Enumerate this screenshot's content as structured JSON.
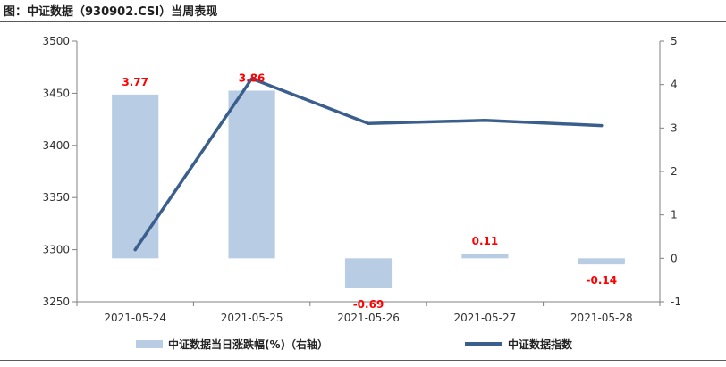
{
  "figure_title": "图：中证数据（930902.CSI）当周表现",
  "colors": {
    "bar": "#b8cce4",
    "line": "#3a5f8c",
    "label": "#ff0000",
    "axis": "#808080"
  },
  "chart_data": {
    "type": "bar+line",
    "categories": [
      "2021-05-24",
      "2021-05-25",
      "2021-05-26",
      "2021-05-27",
      "2021-05-28"
    ],
    "series": [
      {
        "name": "中证数据当日涨跌幅(%)（右轴）",
        "type": "bar",
        "axis": "right",
        "values": [
          3.77,
          3.86,
          -0.69,
          0.11,
          -0.14
        ],
        "data_labels": [
          "3.77",
          "3.86",
          "-0.69",
          "0.11",
          "-0.14"
        ]
      },
      {
        "name": "中证数据指数",
        "type": "line",
        "axis": "left",
        "values": [
          3300,
          3464,
          3421,
          3424,
          3419
        ]
      }
    ],
    "y_left": {
      "min": 3250,
      "max": 3500,
      "ticks": [
        3250,
        3300,
        3350,
        3400,
        3450,
        3500
      ]
    },
    "y_right": {
      "min": -1,
      "max": 5,
      "ticks": [
        -1,
        0,
        1,
        2,
        3,
        4,
        5
      ]
    },
    "grid": false,
    "legend_position": "bottom"
  }
}
